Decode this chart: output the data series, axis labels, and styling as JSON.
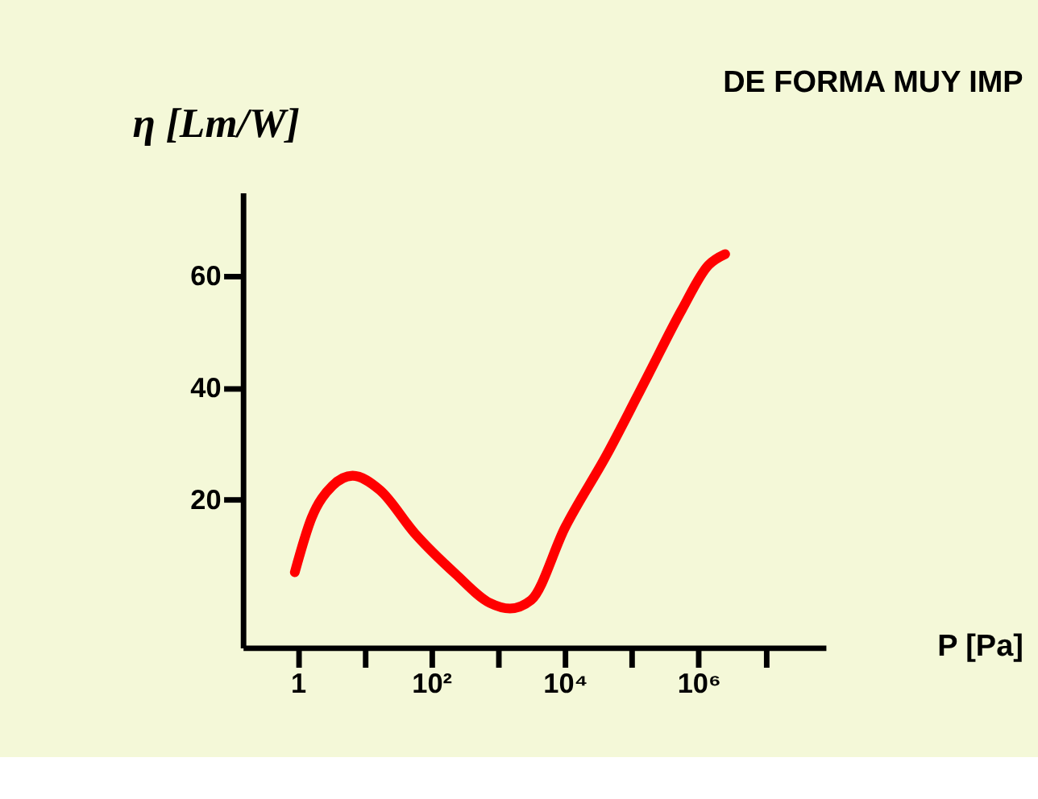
{
  "chart_data": {
    "type": "line",
    "title": "DE FORMA MUY IMP",
    "xlabel": "P [Pa]",
    "ylabel": "η [Lm/W]",
    "log": "x",
    "grid": false,
    "marker": "none",
    "line_style": "solid",
    "x": [
      0.9,
      1.6,
      3.3,
      6.6,
      17,
      56,
      230,
      750,
      1500,
      3100,
      10000,
      42000,
      170000,
      560000,
      1400000,
      2500000
    ],
    "series": [
      {
        "color": "#ff0000",
        "values": [
          7,
          16.7,
          22.5,
          24.3,
          21.7,
          14,
          6.7,
          1.5,
          0.5,
          2,
          15,
          28,
          42,
          54,
          62,
          64
        ]
      }
    ],
    "xlim": [
      0.15,
      80000000
    ],
    "xticks": [
      1,
      {
        "value": 10,
        "label": null
      },
      {
        "value": 100,
        "label": "10²"
      },
      {
        "value": 1000,
        "label": null
      },
      {
        "value": 10000,
        "label": "10⁴"
      },
      {
        "value": 100000,
        "label": null
      },
      {
        "value": 1000000,
        "label": "10⁶"
      },
      {
        "value": 10000000,
        "label": null
      }
    ],
    "ylim": [
      -6.5,
      75
    ],
    "yticks": [
      20,
      40,
      60
    ]
  }
}
